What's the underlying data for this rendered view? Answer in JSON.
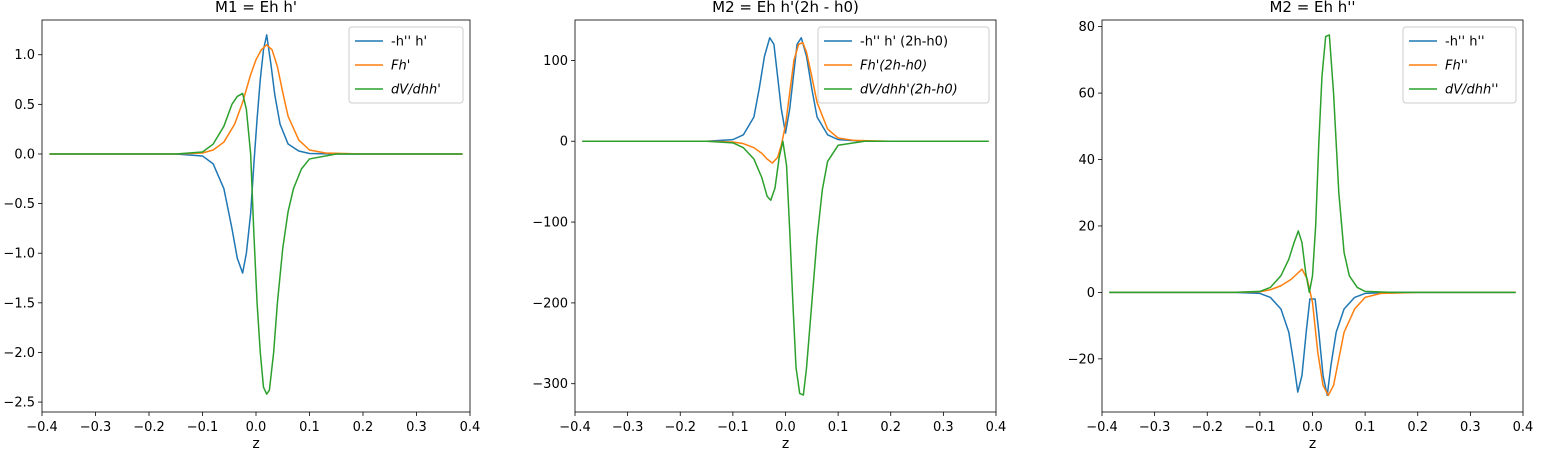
{
  "colors": {
    "blue": "#1f77b4",
    "orange": "#ff7f0e",
    "green": "#2ca02c"
  },
  "chart_data": [
    {
      "type": "line",
      "title": "M1 = Eh h'",
      "xlabel": "z",
      "ylabel": "",
      "xlim": [
        -0.4,
        0.4
      ],
      "ylim": [
        -2.6,
        1.35
      ],
      "xticks": [
        -0.4,
        -0.3,
        -0.2,
        -0.1,
        0.0,
        0.1,
        0.2,
        0.3,
        0.4
      ],
      "xtick_labels": [
        "−0.4",
        "−0.3",
        "−0.2",
        "−0.1",
        "0.0",
        "0.1",
        "0.2",
        "0.3",
        "0.4"
      ],
      "yticks": [
        1.0,
        0.5,
        0.0,
        -0.5,
        -1.0,
        -1.5,
        -2.0,
        -2.5
      ],
      "ytick_labels": [
        "1.0",
        "0.5",
        "0.0",
        "−0.5",
        "−1.0",
        "−1.5",
        "−2.0",
        "−2.5"
      ],
      "legend_position": "top-right",
      "series": [
        {
          "name": "-h'' h'",
          "color": "blue",
          "x": [
            -0.385,
            -0.15,
            -0.1,
            -0.08,
            -0.06,
            -0.045,
            -0.035,
            -0.025,
            -0.018,
            -0.01,
            -0.004,
            0.002,
            0.008,
            0.014,
            0.02,
            0.028,
            0.035,
            0.045,
            0.06,
            0.08,
            0.1,
            0.15,
            0.385
          ],
          "y": [
            0,
            0,
            -0.02,
            -0.1,
            -0.35,
            -0.75,
            -1.05,
            -1.2,
            -1.0,
            -0.6,
            -0.1,
            0.35,
            0.75,
            1.05,
            1.2,
            0.9,
            0.6,
            0.3,
            0.1,
            0.03,
            0.005,
            0,
            0
          ]
        },
        {
          "name": "$Fh'$",
          "color": "orange",
          "x": [
            -0.385,
            -0.15,
            -0.1,
            -0.08,
            -0.06,
            -0.04,
            -0.025,
            -0.01,
            0.0,
            0.01,
            0.02,
            0.03,
            0.04,
            0.05,
            0.06,
            0.08,
            0.1,
            0.13,
            0.2,
            0.385
          ],
          "y": [
            0,
            0,
            0.01,
            0.04,
            0.12,
            0.3,
            0.52,
            0.8,
            0.95,
            1.05,
            1.1,
            1.05,
            0.88,
            0.62,
            0.38,
            0.14,
            0.04,
            0.01,
            0,
            0
          ]
        },
        {
          "name": "$dV/dhh'$",
          "color": "green",
          "x": [
            -0.385,
            -0.15,
            -0.1,
            -0.08,
            -0.06,
            -0.045,
            -0.035,
            -0.025,
            -0.018,
            -0.01,
            -0.004,
            0.002,
            0.008,
            0.014,
            0.02,
            0.025,
            0.033,
            0.04,
            0.05,
            0.06,
            0.07,
            0.085,
            0.1,
            0.15,
            0.385
          ],
          "y": [
            0,
            0,
            0.02,
            0.1,
            0.28,
            0.5,
            0.58,
            0.61,
            0.45,
            0.0,
            -0.8,
            -1.5,
            -2.0,
            -2.35,
            -2.42,
            -2.38,
            -2.0,
            -1.5,
            -0.95,
            -0.58,
            -0.35,
            -0.15,
            -0.05,
            0,
            0
          ]
        }
      ]
    },
    {
      "type": "line",
      "title": "M2 = Eh h'(2h - h0)",
      "xlabel": "z",
      "ylabel": "",
      "xlim": [
        -0.4,
        0.4
      ],
      "ylim": [
        -335,
        150
      ],
      "xticks": [
        -0.4,
        -0.3,
        -0.2,
        -0.1,
        0.0,
        0.1,
        0.2,
        0.3,
        0.4
      ],
      "xtick_labels": [
        "−0.4",
        "−0.3",
        "−0.2",
        "−0.1",
        "0.0",
        "0.1",
        "0.2",
        "0.3",
        "0.4"
      ],
      "yticks": [
        100,
        0,
        -100,
        -200,
        -300
      ],
      "ytick_labels": [
        "100",
        "0",
        "−100",
        "−200",
        "−300"
      ],
      "legend_position": "top-right",
      "series": [
        {
          "name": "-h'' h' (2h-h0)",
          "color": "blue",
          "x": [
            -0.385,
            -0.15,
            -0.1,
            -0.08,
            -0.06,
            -0.05,
            -0.04,
            -0.03,
            -0.022,
            -0.015,
            -0.008,
            0.0,
            0.008,
            0.015,
            0.022,
            0.03,
            0.04,
            0.05,
            0.06,
            0.08,
            0.1,
            0.15,
            0.385
          ],
          "y": [
            0,
            0,
            2,
            8,
            30,
            65,
            105,
            128,
            120,
            80,
            40,
            10,
            40,
            80,
            120,
            128,
            105,
            65,
            30,
            8,
            2,
            0,
            0
          ]
        },
        {
          "name": "$Fh'(2h-h0)$",
          "color": "orange",
          "x": [
            -0.385,
            -0.15,
            -0.1,
            -0.08,
            -0.06,
            -0.045,
            -0.035,
            -0.025,
            -0.015,
            -0.008,
            0.0,
            0.008,
            0.016,
            0.025,
            0.033,
            0.04,
            0.05,
            0.06,
            0.08,
            0.1,
            0.13,
            0.2,
            0.385
          ],
          "y": [
            0,
            0,
            -1,
            -3,
            -8,
            -15,
            -22,
            -27,
            -20,
            -5,
            20,
            60,
            100,
            120,
            122,
            110,
            80,
            48,
            15,
            4,
            1,
            0,
            0
          ]
        },
        {
          "name": "$dV/dhh'(2h-h0)$",
          "color": "green",
          "x": [
            -0.385,
            -0.15,
            -0.1,
            -0.08,
            -0.06,
            -0.045,
            -0.035,
            -0.028,
            -0.02,
            -0.012,
            -0.005,
            0.002,
            0.008,
            0.014,
            0.02,
            0.027,
            0.034,
            0.04,
            0.05,
            0.06,
            0.07,
            0.08,
            0.1,
            0.15,
            0.385
          ],
          "y": [
            0,
            0,
            -2,
            -8,
            -22,
            -45,
            -68,
            -73,
            -58,
            -20,
            0,
            -30,
            -110,
            -200,
            -280,
            -312,
            -314,
            -280,
            -200,
            -120,
            -60,
            -25,
            -5,
            0,
            0
          ]
        }
      ]
    },
    {
      "type": "line",
      "title": "M2 = Eh h''",
      "xlabel": "z",
      "ylabel": "",
      "xlim": [
        -0.4,
        0.4
      ],
      "ylim": [
        -36,
        82
      ],
      "xticks": [
        -0.4,
        -0.3,
        -0.2,
        -0.1,
        0.0,
        0.1,
        0.2,
        0.3,
        0.4
      ],
      "xtick_labels": [
        "−0.4",
        "−0.3",
        "−0.2",
        "−0.1",
        "0.0",
        "0.1",
        "0.2",
        "0.3",
        "0.4"
      ],
      "yticks": [
        80,
        60,
        40,
        20,
        0,
        -20
      ],
      "ytick_labels": [
        "80",
        "60",
        "40",
        "20",
        "0",
        "−20"
      ],
      "legend_position": "top-right",
      "series": [
        {
          "name": "-h'' h''",
          "color": "blue",
          "x": [
            -0.385,
            -0.15,
            -0.1,
            -0.08,
            -0.06,
            -0.045,
            -0.035,
            -0.028,
            -0.02,
            -0.012,
            -0.005,
            0.005,
            0.012,
            0.02,
            0.028,
            0.035,
            0.045,
            0.06,
            0.08,
            0.1,
            0.15,
            0.385
          ],
          "y": [
            0,
            0,
            -0.3,
            -1.5,
            -5,
            -12,
            -22,
            -30,
            -25,
            -12,
            -2,
            -2,
            -12,
            -25,
            -31,
            -22,
            -12,
            -5,
            -1.5,
            -0.3,
            0,
            0
          ]
        },
        {
          "name": "$Fh''$",
          "color": "orange",
          "x": [
            -0.385,
            -0.15,
            -0.1,
            -0.08,
            -0.06,
            -0.04,
            -0.03,
            -0.02,
            -0.01,
            0.0,
            0.01,
            0.02,
            0.03,
            0.04,
            0.05,
            0.06,
            0.08,
            0.1,
            0.13,
            0.2,
            0.385
          ],
          "y": [
            0,
            0,
            0.2,
            0.8,
            2,
            4,
            5.5,
            7,
            4,
            -3,
            -18,
            -28,
            -31,
            -28,
            -20,
            -12,
            -5,
            -1.5,
            -0.3,
            0,
            0
          ]
        },
        {
          "name": "$dV/dhh''$",
          "color": "green",
          "x": [
            -0.385,
            -0.15,
            -0.1,
            -0.08,
            -0.06,
            -0.045,
            -0.035,
            -0.027,
            -0.02,
            -0.013,
            -0.006,
            0.0,
            0.006,
            0.012,
            0.018,
            0.025,
            0.032,
            0.04,
            0.05,
            0.06,
            0.07,
            0.085,
            0.1,
            0.15,
            0.385
          ],
          "y": [
            0,
            0,
            0.3,
            1.5,
            5,
            10,
            15,
            18.5,
            15,
            6,
            0,
            5,
            20,
            45,
            65,
            77,
            77.5,
            60,
            30,
            12,
            5,
            1.5,
            0.3,
            0,
            0
          ]
        }
      ]
    }
  ]
}
